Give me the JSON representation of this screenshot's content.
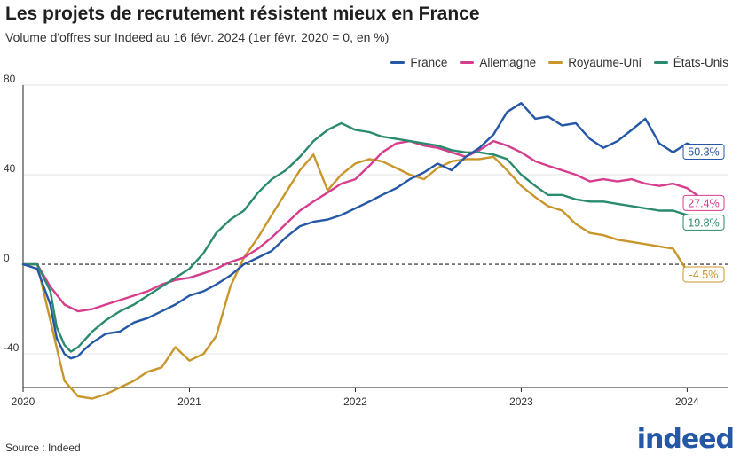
{
  "title": "Les projets de recrutement résistent mieux en France",
  "subtitle": "Volume d'offres sur Indeed au 16 févr. 2024 (1er févr. 2020 = 0, en %)",
  "source": "Source : Indeed",
  "brand": "indeed",
  "chart_data": {
    "type": "line",
    "x_unit": "date",
    "xlim": [
      "2020-01-01",
      "2024-04-01"
    ],
    "ylim": [
      -55,
      80
    ],
    "y_ticks": [
      80,
      40,
      0,
      -40
    ],
    "y_tick_labels": [
      "80",
      "40",
      "0",
      "-40"
    ],
    "x_ticks": [
      "2020-01-01",
      "2021-01-01",
      "2022-01-01",
      "2023-01-01",
      "2024-01-01"
    ],
    "x_tick_labels": [
      "2020",
      "2021",
      "2022",
      "2023",
      "2024"
    ],
    "reference_line": 0,
    "legend_position": "top-right",
    "series": [
      {
        "name": "France",
        "color": "#2557a7",
        "end_label": "50.3%",
        "points": [
          [
            "2020-01-01",
            0
          ],
          [
            "2020-02-01",
            -2
          ],
          [
            "2020-03-01",
            -18
          ],
          [
            "2020-03-15",
            -33
          ],
          [
            "2020-04-01",
            -40
          ],
          [
            "2020-04-15",
            -42
          ],
          [
            "2020-05-01",
            -41
          ],
          [
            "2020-05-15",
            -38
          ],
          [
            "2020-06-01",
            -35
          ],
          [
            "2020-07-01",
            -31
          ],
          [
            "2020-08-01",
            -30
          ],
          [
            "2020-09-01",
            -26
          ],
          [
            "2020-10-01",
            -24
          ],
          [
            "2020-11-01",
            -21
          ],
          [
            "2020-12-01",
            -18
          ],
          [
            "2021-01-01",
            -14
          ],
          [
            "2021-02-01",
            -12
          ],
          [
            "2021-03-01",
            -9
          ],
          [
            "2021-04-01",
            -5
          ],
          [
            "2021-05-01",
            0
          ],
          [
            "2021-06-01",
            3
          ],
          [
            "2021-07-01",
            6
          ],
          [
            "2021-08-01",
            12
          ],
          [
            "2021-09-01",
            17
          ],
          [
            "2021-10-01",
            19
          ],
          [
            "2021-11-01",
            20
          ],
          [
            "2021-12-01",
            22
          ],
          [
            "2022-01-01",
            25
          ],
          [
            "2022-02-01",
            28
          ],
          [
            "2022-03-01",
            31
          ],
          [
            "2022-04-01",
            34
          ],
          [
            "2022-05-01",
            38
          ],
          [
            "2022-06-01",
            41
          ],
          [
            "2022-07-01",
            45
          ],
          [
            "2022-08-01",
            42
          ],
          [
            "2022-09-01",
            48
          ],
          [
            "2022-10-01",
            52
          ],
          [
            "2022-11-01",
            58
          ],
          [
            "2022-12-01",
            68
          ],
          [
            "2023-01-01",
            72
          ],
          [
            "2023-02-01",
            65
          ],
          [
            "2023-03-01",
            66
          ],
          [
            "2023-04-01",
            62
          ],
          [
            "2023-05-01",
            63
          ],
          [
            "2023-06-01",
            56
          ],
          [
            "2023-07-01",
            52
          ],
          [
            "2023-08-01",
            55
          ],
          [
            "2023-09-01",
            60
          ],
          [
            "2023-10-01",
            65
          ],
          [
            "2023-11-01",
            54
          ],
          [
            "2023-12-01",
            50
          ],
          [
            "2024-01-01",
            54
          ],
          [
            "2024-02-16",
            50.3
          ]
        ]
      },
      {
        "name": "Allemagne",
        "color": "#d63d8d",
        "end_label": "27.4%",
        "points": [
          [
            "2020-01-01",
            0
          ],
          [
            "2020-02-01",
            0
          ],
          [
            "2020-03-01",
            -10
          ],
          [
            "2020-04-01",
            -18
          ],
          [
            "2020-05-01",
            -21
          ],
          [
            "2020-06-01",
            -20
          ],
          [
            "2020-07-01",
            -18
          ],
          [
            "2020-08-01",
            -16
          ],
          [
            "2020-09-01",
            -14
          ],
          [
            "2020-10-01",
            -12
          ],
          [
            "2020-11-01",
            -9
          ],
          [
            "2020-12-01",
            -7
          ],
          [
            "2021-01-01",
            -6
          ],
          [
            "2021-02-01",
            -4
          ],
          [
            "2021-03-01",
            -2
          ],
          [
            "2021-04-01",
            1
          ],
          [
            "2021-05-01",
            3
          ],
          [
            "2021-06-01",
            7
          ],
          [
            "2021-07-01",
            12
          ],
          [
            "2021-08-01",
            18
          ],
          [
            "2021-09-01",
            24
          ],
          [
            "2021-10-01",
            28
          ],
          [
            "2021-11-01",
            32
          ],
          [
            "2021-12-01",
            36
          ],
          [
            "2022-01-01",
            38
          ],
          [
            "2022-02-01",
            44
          ],
          [
            "2022-03-01",
            50
          ],
          [
            "2022-04-01",
            54
          ],
          [
            "2022-05-01",
            55
          ],
          [
            "2022-06-01",
            53
          ],
          [
            "2022-07-01",
            52
          ],
          [
            "2022-08-01",
            50
          ],
          [
            "2022-09-01",
            48
          ],
          [
            "2022-10-01",
            51
          ],
          [
            "2022-11-01",
            55
          ],
          [
            "2022-12-01",
            53
          ],
          [
            "2023-01-01",
            50
          ],
          [
            "2023-02-01",
            46
          ],
          [
            "2023-03-01",
            44
          ],
          [
            "2023-04-01",
            42
          ],
          [
            "2023-05-01",
            40
          ],
          [
            "2023-06-01",
            37
          ],
          [
            "2023-07-01",
            38
          ],
          [
            "2023-08-01",
            37
          ],
          [
            "2023-09-01",
            38
          ],
          [
            "2023-10-01",
            36
          ],
          [
            "2023-11-01",
            35
          ],
          [
            "2023-12-01",
            36
          ],
          [
            "2024-01-01",
            34
          ],
          [
            "2024-02-16",
            27.4
          ]
        ]
      },
      {
        "name": "Royaume-Uni",
        "color": "#c8962a",
        "end_label": "-4.5%",
        "points": [
          [
            "2020-01-01",
            0
          ],
          [
            "2020-02-01",
            0
          ],
          [
            "2020-03-01",
            -25
          ],
          [
            "2020-04-01",
            -52
          ],
          [
            "2020-05-01",
            -59
          ],
          [
            "2020-06-01",
            -60
          ],
          [
            "2020-07-01",
            -58
          ],
          [
            "2020-08-01",
            -55
          ],
          [
            "2020-09-01",
            -52
          ],
          [
            "2020-10-01",
            -48
          ],
          [
            "2020-11-01",
            -46
          ],
          [
            "2020-12-01",
            -37
          ],
          [
            "2021-01-01",
            -43
          ],
          [
            "2021-02-01",
            -40
          ],
          [
            "2021-03-01",
            -32
          ],
          [
            "2021-04-01",
            -10
          ],
          [
            "2021-05-01",
            3
          ],
          [
            "2021-06-01",
            12
          ],
          [
            "2021-07-01",
            22
          ],
          [
            "2021-08-01",
            32
          ],
          [
            "2021-09-01",
            42
          ],
          [
            "2021-10-01",
            49
          ],
          [
            "2021-11-01",
            33
          ],
          [
            "2021-12-01",
            40
          ],
          [
            "2022-01-01",
            45
          ],
          [
            "2022-02-01",
            47
          ],
          [
            "2022-03-01",
            46
          ],
          [
            "2022-04-01",
            43
          ],
          [
            "2022-05-01",
            40
          ],
          [
            "2022-06-01",
            38
          ],
          [
            "2022-07-01",
            43
          ],
          [
            "2022-08-01",
            46
          ],
          [
            "2022-09-01",
            47
          ],
          [
            "2022-10-01",
            47
          ],
          [
            "2022-11-01",
            48
          ],
          [
            "2022-12-01",
            42
          ],
          [
            "2023-01-01",
            35
          ],
          [
            "2023-02-01",
            30
          ],
          [
            "2023-03-01",
            26
          ],
          [
            "2023-04-01",
            24
          ],
          [
            "2023-05-01",
            18
          ],
          [
            "2023-06-01",
            14
          ],
          [
            "2023-07-01",
            13
          ],
          [
            "2023-08-01",
            11
          ],
          [
            "2023-09-01",
            10
          ],
          [
            "2023-10-01",
            9
          ],
          [
            "2023-11-01",
            8
          ],
          [
            "2023-12-01",
            7
          ],
          [
            "2024-01-01",
            -3
          ],
          [
            "2024-02-16",
            -4.5
          ]
        ]
      },
      {
        "name": "États-Unis",
        "color": "#2a8a6e",
        "end_label": "19.8%",
        "points": [
          [
            "2020-01-01",
            0
          ],
          [
            "2020-02-01",
            0
          ],
          [
            "2020-03-01",
            -12
          ],
          [
            "2020-03-15",
            -28
          ],
          [
            "2020-04-01",
            -36
          ],
          [
            "2020-04-15",
            -39
          ],
          [
            "2020-05-01",
            -37
          ],
          [
            "2020-06-01",
            -30
          ],
          [
            "2020-07-01",
            -25
          ],
          [
            "2020-08-01",
            -21
          ],
          [
            "2020-09-01",
            -18
          ],
          [
            "2020-10-01",
            -14
          ],
          [
            "2020-11-01",
            -10
          ],
          [
            "2020-12-01",
            -6
          ],
          [
            "2021-01-01",
            -2
          ],
          [
            "2021-02-01",
            5
          ],
          [
            "2021-03-01",
            14
          ],
          [
            "2021-04-01",
            20
          ],
          [
            "2021-05-01",
            24
          ],
          [
            "2021-06-01",
            32
          ],
          [
            "2021-07-01",
            38
          ],
          [
            "2021-08-01",
            42
          ],
          [
            "2021-09-01",
            48
          ],
          [
            "2021-10-01",
            55
          ],
          [
            "2021-11-01",
            60
          ],
          [
            "2021-12-01",
            63
          ],
          [
            "2022-01-01",
            60
          ],
          [
            "2022-02-01",
            59
          ],
          [
            "2022-03-01",
            57
          ],
          [
            "2022-04-01",
            56
          ],
          [
            "2022-05-01",
            55
          ],
          [
            "2022-06-01",
            54
          ],
          [
            "2022-07-01",
            53
          ],
          [
            "2022-08-01",
            51
          ],
          [
            "2022-09-01",
            50
          ],
          [
            "2022-10-01",
            50
          ],
          [
            "2022-11-01",
            49
          ],
          [
            "2022-12-01",
            47
          ],
          [
            "2023-01-01",
            40
          ],
          [
            "2023-02-01",
            35
          ],
          [
            "2023-03-01",
            31
          ],
          [
            "2023-04-01",
            31
          ],
          [
            "2023-05-01",
            29
          ],
          [
            "2023-06-01",
            28
          ],
          [
            "2023-07-01",
            28
          ],
          [
            "2023-08-01",
            27
          ],
          [
            "2023-09-01",
            26
          ],
          [
            "2023-10-01",
            25
          ],
          [
            "2023-11-01",
            24
          ],
          [
            "2023-12-01",
            24
          ],
          [
            "2024-01-01",
            22
          ],
          [
            "2024-02-16",
            19.8
          ]
        ]
      }
    ]
  }
}
